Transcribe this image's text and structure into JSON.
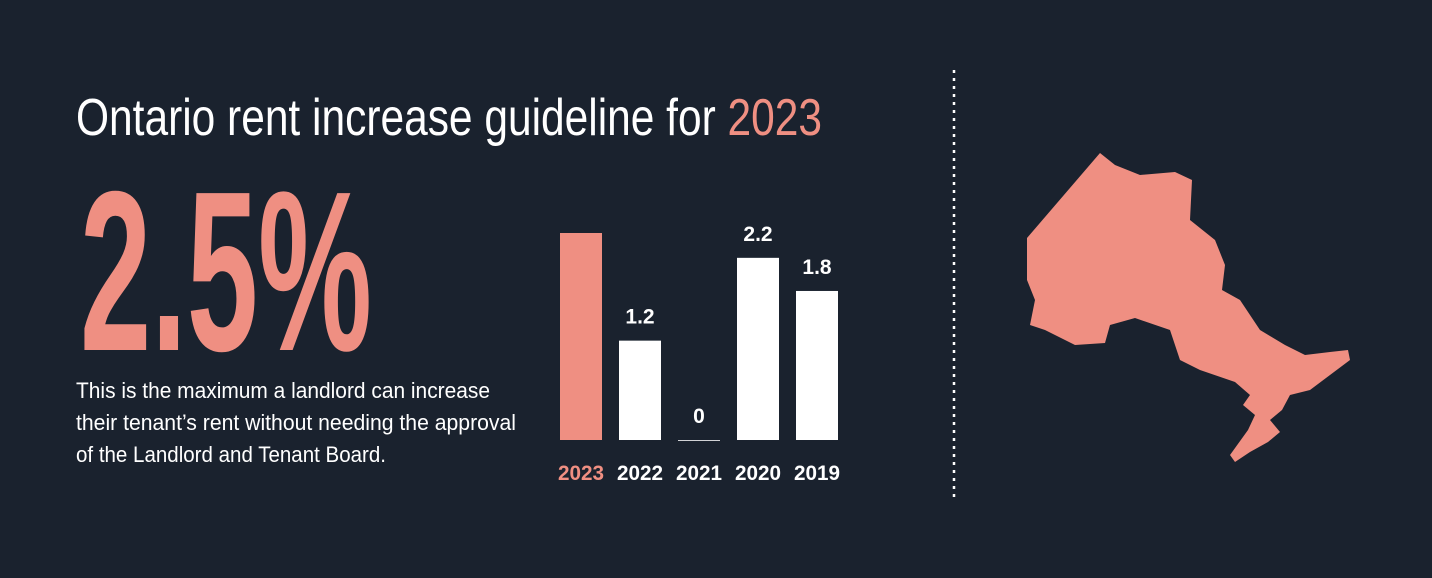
{
  "header": {
    "title": "Ontario rent increase guideline for ",
    "title_highlight": "2023"
  },
  "headline": "2.5%",
  "description": [
    "This is the maximum a landlord can increase",
    "their tenant’s rent without needing the approval",
    "of the Landlord and Tenant Board."
  ],
  "chart_data": {
    "type": "bar",
    "categories": [
      "2023",
      "2022",
      "2021",
      "2020",
      "2019"
    ],
    "values": [
      2.5,
      1.2,
      0,
      2.2,
      1.8
    ],
    "value_labels": [
      null,
      "1.2",
      "0",
      "2.2",
      "1.8"
    ],
    "colors": [
      "#ef8f82",
      "#ffffff",
      "#ffffff",
      "#ffffff",
      "#ffffff"
    ]
  }
}
